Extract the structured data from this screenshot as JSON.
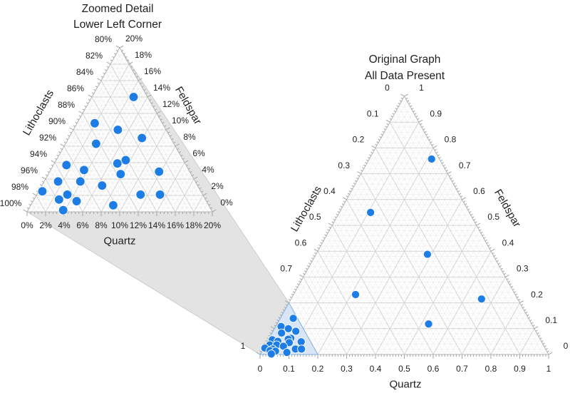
{
  "figure": {
    "background": "#ffffff",
    "left_plot": {
      "title_line1": "Zoomed Detail",
      "title_line2": "Lower Left Corner",
      "axis_titles": {
        "left": "Lithoclasts",
        "right": "Feldspar",
        "bottom": "Quartz"
      },
      "tick_labels": {
        "left": [
          "80%",
          "82%",
          "84%",
          "86%",
          "88%",
          "90%",
          "92%",
          "94%",
          "96%",
          "98%",
          "100%"
        ],
        "left_values": [
          80,
          82,
          84,
          86,
          88,
          90,
          92,
          94,
          96,
          98,
          100
        ],
        "right": [
          "20%",
          "18%",
          "16%",
          "14%",
          "12%",
          "10%",
          "8%",
          "6%",
          "4%",
          "2%",
          "0%"
        ],
        "right_values": [
          20,
          18,
          16,
          14,
          12,
          10,
          8,
          6,
          4,
          2,
          0
        ],
        "bottom": [
          "0%",
          "2%",
          "4%",
          "6%",
          "8%",
          "10%",
          "12%",
          "14%",
          "16%",
          "18%",
          "20%"
        ],
        "bottom_values": [
          0,
          2,
          4,
          6,
          8,
          10,
          12,
          14,
          16,
          18,
          20
        ]
      }
    },
    "right_plot": {
      "title_line1": "Original Graph",
      "title_line2": "All Data Present",
      "axis_titles": {
        "left": "Lithoclasts",
        "right": "Feldspar",
        "bottom": "Quartz"
      },
      "tick_labels": {
        "left": [
          "0",
          "0.1",
          "0.2",
          "0.3",
          "0.4",
          "0.5",
          "0.6",
          "0.7",
          "1"
        ],
        "left_values": [
          0,
          0.1,
          0.2,
          0.3,
          0.4,
          0.5,
          0.6,
          0.7,
          1
        ],
        "right": [
          "1",
          "0.9",
          "0.8",
          "0.7",
          "0.6",
          "0.5",
          "0.4",
          "0.3",
          "0.2",
          "0.1",
          "0"
        ],
        "right_values": [
          1,
          0.9,
          0.8,
          0.7,
          0.6,
          0.5,
          0.4,
          0.3,
          0.2,
          0.1,
          0
        ],
        "bottom": [
          "0",
          "0.1",
          "0.2",
          "0.3",
          "0.4",
          "0.5",
          "0.6",
          "0.7",
          "0.8",
          "0.9",
          "1"
        ],
        "bottom_values": [
          0,
          0.1,
          0.2,
          0.3,
          0.4,
          0.5,
          0.6,
          0.7,
          0.8,
          0.9,
          1
        ]
      }
    },
    "colors": {
      "point": "#1d7de4",
      "point_stroke": "#ffffff",
      "zoom_region_fill": "#cfe1f5",
      "zoom_region_stroke": "#85b1dd",
      "cone_fill": "#e3e3e3",
      "cone_stroke": "#cccccc",
      "grid_major": "#d4d4d4",
      "grid_minor": "#efefef",
      "edge": "#b5b5b5",
      "tick": "#a3a3a3",
      "text": "#1f1f1f"
    }
  },
  "chart_data": {
    "type": "scatter",
    "variant": "ternary",
    "components": {
      "bottom_axis": "Quartz",
      "right_axis": "Feldspar",
      "left_axis": "Lithoclasts"
    },
    "point_note": "each point = [quartz_fraction, feldspar_fraction]; lithoclasts = 1 - quartz - feldspar",
    "cluster_points": [
      [
        0.045,
        0.14
      ],
      [
        0.019,
        0.108
      ],
      [
        0.048,
        0.1
      ],
      [
        0.079,
        0.09
      ],
      [
        0.033,
        0.083
      ],
      [
        0.075,
        0.063
      ],
      [
        0.068,
        0.059
      ],
      [
        0.014,
        0.057
      ],
      [
        0.036,
        0.051
      ],
      [
        0.078,
        0.046
      ],
      [
        0.118,
        0.049
      ],
      [
        0.015,
        0.037
      ],
      [
        0.039,
        0.037
      ],
      [
        0.065,
        0.032
      ],
      [
        0.004,
        0.025
      ],
      [
        0.033,
        0.021
      ],
      [
        0.027,
        0.015
      ],
      [
        0.047,
        0.013
      ],
      [
        0.112,
        0.021
      ],
      [
        0.133,
        0.021
      ],
      [
        0.089,
        0.008
      ],
      [
        0.038,
        0.002
      ]
    ],
    "outlier_points": [
      [
        0.216,
        0.757
      ],
      [
        0.108,
        0.55
      ],
      [
        0.386,
        0.388
      ],
      [
        0.215,
        0.232
      ],
      [
        0.66,
        0.215
      ],
      [
        0.525,
        0.118
      ]
    ],
    "panels": [
      {
        "name": "zoomed-detail-plot",
        "title": "Zoomed Detail Lower Left Corner",
        "quartz_range": [
          0,
          0.2
        ],
        "feldspar_range": [
          0,
          0.2
        ],
        "lithoclasts_range": [
          0.8,
          1.0
        ],
        "series": [
          "cluster_points"
        ],
        "tick_format": "percent"
      },
      {
        "name": "original-plot",
        "title": "Original Graph All Data Present",
        "quartz_range": [
          0,
          1
        ],
        "feldspar_range": [
          0,
          1
        ],
        "lithoclasts_range": [
          0,
          1
        ],
        "series": [
          "cluster_points",
          "outlier_points"
        ],
        "tick_format": "decimal",
        "highlight_region": {
          "quartz": [
            0,
            0.2
          ],
          "feldspar": [
            0,
            0.2
          ],
          "lithoclasts": [
            0.8,
            1.0
          ]
        }
      }
    ]
  }
}
